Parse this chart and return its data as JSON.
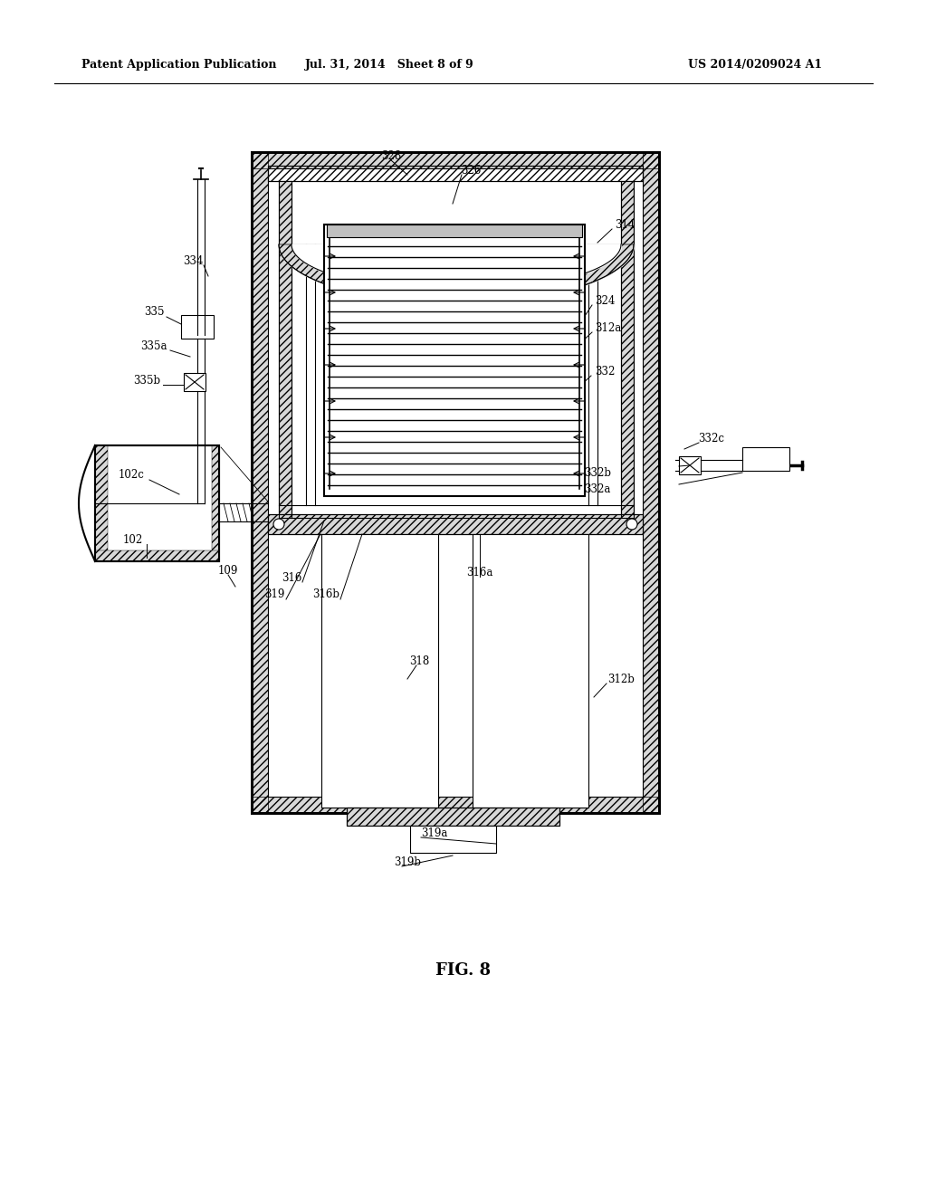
{
  "bg_color": "#ffffff",
  "line_color": "#000000",
  "header_left": "Patent Application Publication",
  "header_mid": "Jul. 31, 2014   Sheet 8 of 9",
  "header_right": "US 2014/0209024 A1",
  "fig_label": "FIG. 8"
}
